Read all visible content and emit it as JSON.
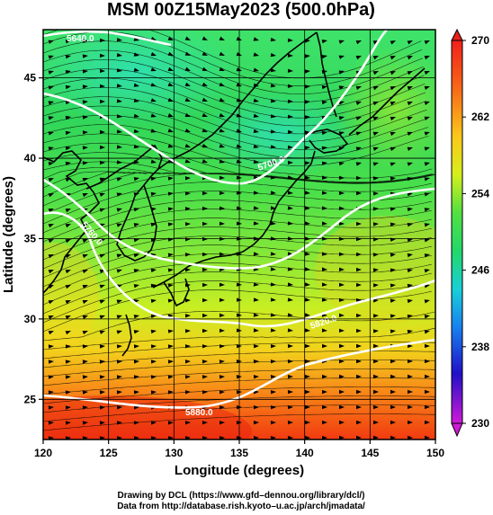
{
  "title": "MSM 00Z15May2023 (500.0hPa)",
  "map": {
    "lon_range": [
      120,
      150
    ],
    "lat_range": [
      22.5,
      48
    ],
    "lon_ticks": [
      120,
      125,
      130,
      135,
      140,
      145,
      150
    ],
    "lat_ticks": [
      25,
      30,
      35,
      40,
      45
    ],
    "xlabel": "Longitude (degrees)",
    "ylabel": "Latitude  (degrees)",
    "grid": true
  },
  "colorbar": {
    "ticks": [
      "270",
      "262",
      "254",
      "246",
      "238",
      "230"
    ],
    "min": 230,
    "max": 270,
    "extend": "both"
  },
  "contours": {
    "color": "#ffffff",
    "labels": [
      "5880.0",
      "5700.0",
      "5820.0",
      "5640.0",
      "5760.0"
    ]
  },
  "credits": {
    "line1": "Drawing by DCL (https://www.gfd–dennou.org/library/dcl/)",
    "line2": "Data from http://database.rish.kyoto–u.ac.jp/arch/jmadata/"
  }
}
